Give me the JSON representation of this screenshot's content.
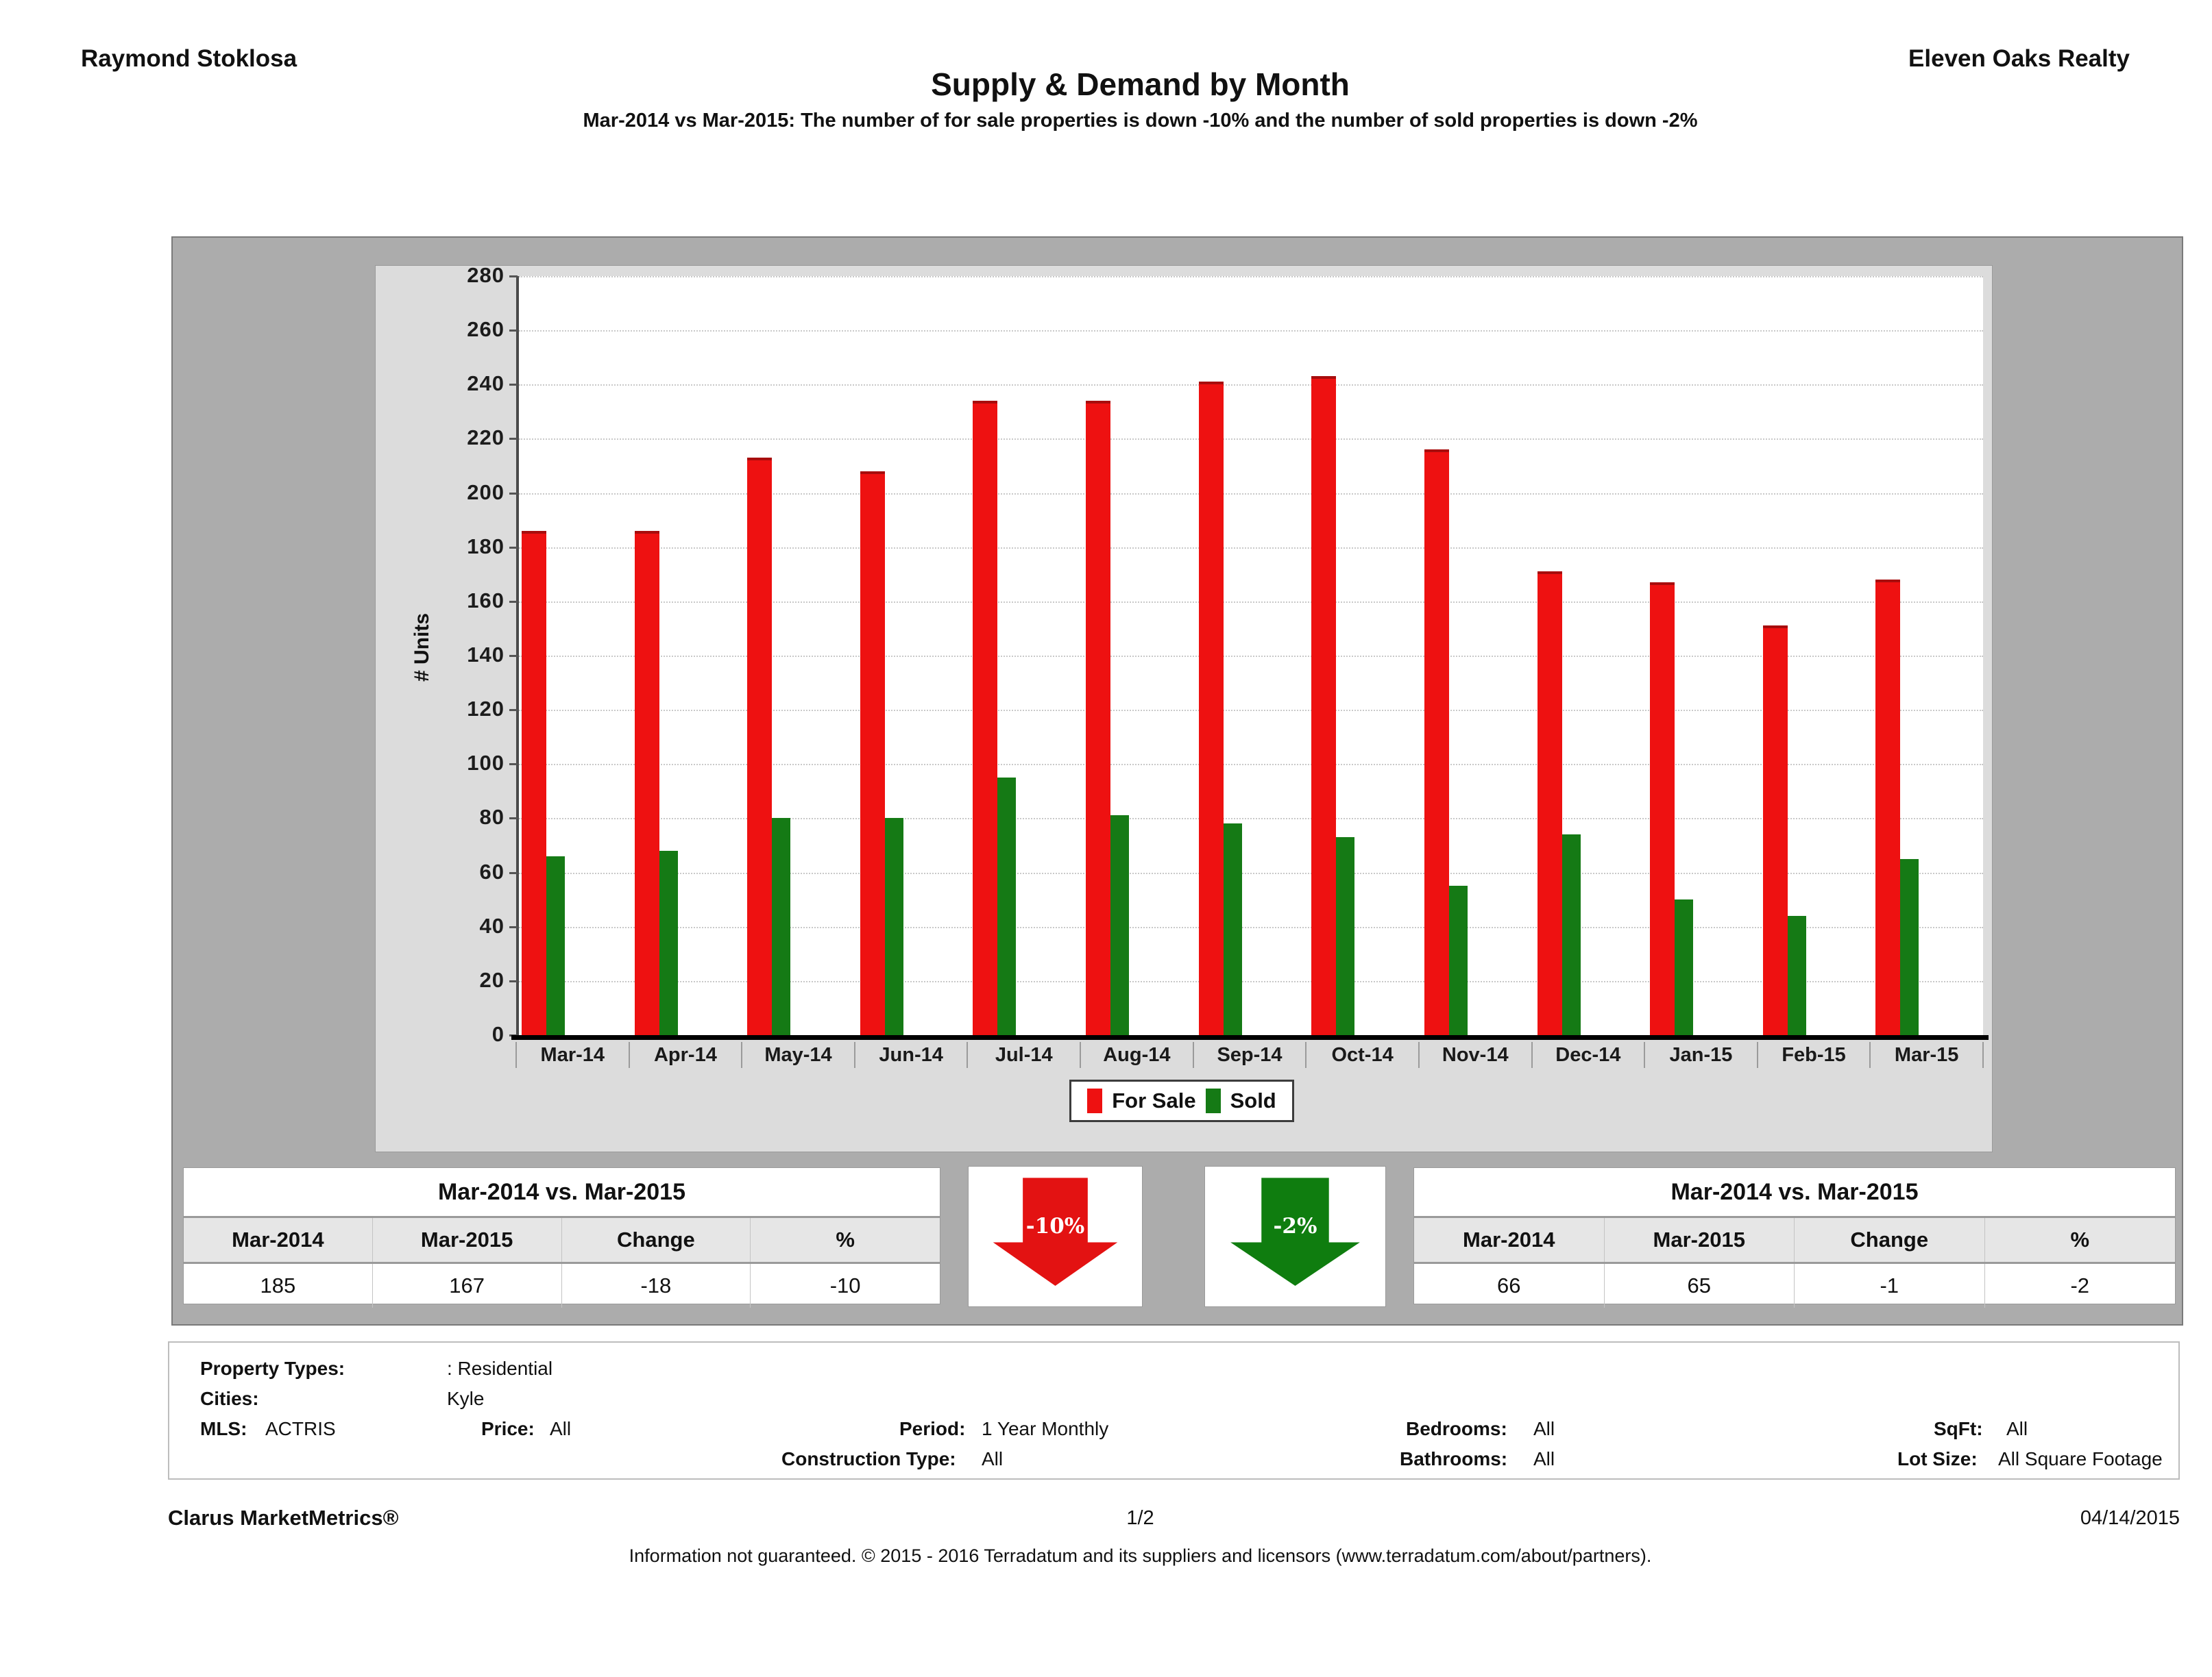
{
  "header": {
    "agent": "Raymond Stoklosa",
    "company": "Eleven Oaks Realty",
    "title": "Supply & Demand by Month",
    "subtitle": "Mar-2014 vs Mar-2015: The number of for sale properties is down -10% and the number of sold properties is down -2%"
  },
  "chart_data": {
    "type": "bar",
    "categories": [
      "Mar-14",
      "Apr-14",
      "May-14",
      "Jun-14",
      "Jul-14",
      "Aug-14",
      "Sep-14",
      "Oct-14",
      "Nov-14",
      "Dec-14",
      "Jan-15",
      "Feb-15",
      "Mar-15"
    ],
    "series": [
      {
        "name": "For Sale",
        "color": "#ee1111",
        "values": [
          185,
          185,
          212,
          207,
          233,
          233,
          240,
          242,
          215,
          170,
          166,
          150,
          167
        ]
      },
      {
        "name": "Sold",
        "color": "#157a15",
        "values": [
          66,
          68,
          80,
          80,
          95,
          81,
          78,
          73,
          55,
          74,
          50,
          44,
          65
        ]
      }
    ],
    "title": "Supply & Demand by Month",
    "xlabel": "",
    "ylabel": "# Units",
    "ylim": [
      0,
      280
    ],
    "ytick_step": 20,
    "grid": true,
    "legend_position": "bottom"
  },
  "legend": {
    "for_sale": "For Sale",
    "sold": "Sold"
  },
  "comparison_left": {
    "title": "Mar-2014 vs. Mar-2015",
    "headers": [
      "Mar-2014",
      "Mar-2015",
      "Change",
      "%"
    ],
    "values": [
      "185",
      "167",
      "-18",
      "-10"
    ]
  },
  "comparison_right": {
    "title": "Mar-2014 vs. Mar-2015",
    "headers": [
      "Mar-2014",
      "Mar-2015",
      "Change",
      "%"
    ],
    "values": [
      "66",
      "65",
      "-1",
      "-2"
    ]
  },
  "arrows": {
    "for_sale": {
      "label": "-10%",
      "color": "#e31212"
    },
    "sold": {
      "label": "-2%",
      "color": "#0f7d0f"
    }
  },
  "filters": {
    "property_types_label": "Property Types:",
    "property_types_value": ": Residential",
    "cities_label": "Cities:",
    "cities_value": "Kyle",
    "mls_label": "MLS:",
    "mls_value": "ACTRIS",
    "price_label": "Price:",
    "price_value": "All",
    "period_label": "Period:",
    "period_value": "1 Year Monthly",
    "bedrooms_label": "Bedrooms:",
    "bedrooms_value": "All",
    "sqft_label": "SqFt:",
    "sqft_value": "All",
    "construction_label": "Construction Type:",
    "construction_value": "All",
    "bathrooms_label": "Bathrooms:",
    "bathrooms_value": "All",
    "lotsize_label": "Lot Size:",
    "lotsize_value": "All Square Footage"
  },
  "footer": {
    "brand": "Clarus MarketMetrics®",
    "page": "1/2",
    "date": "04/14/2015",
    "disclaimer": "Information not guaranteed. © 2015 - 2016 Terradatum and its suppliers and licensors (www.terradatum.com/about/partners)."
  }
}
